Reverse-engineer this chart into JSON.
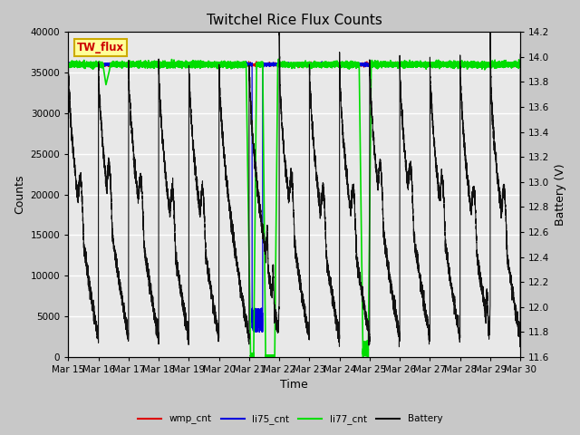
{
  "title": "Twitchel Rice Flux Counts",
  "xlabel": "Time",
  "ylabel_left": "Counts",
  "ylabel_right": "Battery (V)",
  "ylim_left": [
    0,
    40000
  ],
  "ylim_right": [
    11.6,
    14.2
  ],
  "x_tick_labels": [
    "Mar 15",
    "Mar 16",
    "Mar 17",
    "Mar 18",
    "Mar 19",
    "Mar 20",
    "Mar 21",
    "Mar 22",
    "Mar 23",
    "Mar 24",
    "Mar 25",
    "Mar 26",
    "Mar 27",
    "Mar 28",
    "Mar 29",
    "Mar 30"
  ],
  "fig_bg": "#c8c8c8",
  "plot_bg": "#e8e8e8",
  "grid_color": "#ffffff",
  "wmp_color": "#dd0000",
  "li75_color": "#0000dd",
  "li77_color": "#00dd00",
  "battery_color": "#111111",
  "annotation_box_facecolor": "#ffff99",
  "annotation_box_edgecolor": "#ccaa00",
  "annotation_text": "TW_flux",
  "annotation_text_color": "#cc0000",
  "yticks_left": [
    0,
    5000,
    10000,
    15000,
    20000,
    25000,
    30000,
    35000,
    40000
  ],
  "yticks_right": [
    11.6,
    11.8,
    12.0,
    12.2,
    12.4,
    12.6,
    12.8,
    13.0,
    13.2,
    13.4,
    13.6,
    13.8,
    14.0,
    14.2
  ]
}
